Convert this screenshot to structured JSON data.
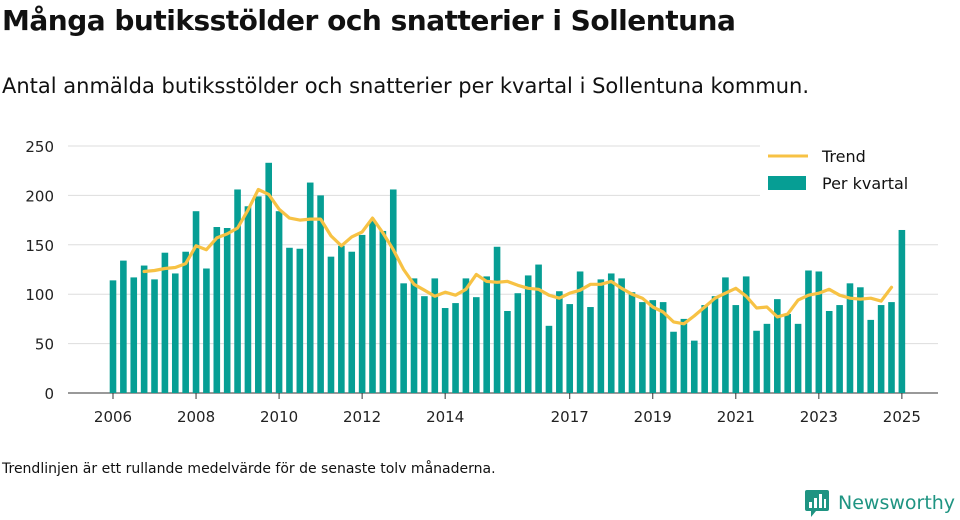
{
  "title": "Många butiksstölder och snatterier i Sollentuna",
  "subtitle": "Antal anmälda butiksstölder och snatterier per kvartal i Sollentuna kommun.",
  "footnote": "Trendlinjen är ett rullande medelvärde för de senaste tolv månaderna.",
  "brand": "Newsworthy",
  "colors": {
    "bars": "#069e94",
    "trend": "#f7c244",
    "grid": "#dddddd",
    "brand": "#1f9482"
  },
  "chart_data": {
    "type": "bar",
    "xlabel": "",
    "ylabel": "",
    "ylim": [
      0,
      250
    ],
    "yticks": [
      0,
      50,
      100,
      150,
      200,
      250
    ],
    "xtick_labels": [
      {
        "label": "2006",
        "quarter_index": 0
      },
      {
        "label": "2008",
        "quarter_index": 8
      },
      {
        "label": "2010",
        "quarter_index": 16
      },
      {
        "label": "2012",
        "quarter_index": 24
      },
      {
        "label": "2014",
        "quarter_index": 32
      },
      {
        "label": "2017",
        "quarter_index": 44
      },
      {
        "label": "2019",
        "quarter_index": 52
      },
      {
        "label": "2021",
        "quarter_index": 60
      },
      {
        "label": "2023",
        "quarter_index": 68
      },
      {
        "label": "2025",
        "quarter_index": 76
      }
    ],
    "grid": true,
    "legend_position": "top-right",
    "series": [
      {
        "name": "Per kvartal",
        "type": "bar",
        "values": [
          114,
          134,
          117,
          129,
          115,
          142,
          121,
          143,
          184,
          126,
          168,
          167,
          206,
          189,
          199,
          233,
          184,
          147,
          146,
          213,
          200,
          138,
          149,
          143,
          160,
          174,
          164,
          206,
          111,
          116,
          98,
          116,
          86,
          91,
          116,
          97,
          118,
          148,
          83,
          101,
          119,
          130,
          68,
          103,
          90,
          123,
          87,
          115,
          121,
          116,
          102,
          92,
          94,
          92,
          62,
          75,
          53,
          89,
          98,
          117,
          89,
          118,
          63,
          70,
          95,
          80,
          70,
          124,
          123,
          83,
          89,
          111,
          107,
          74,
          89,
          92,
          165
        ]
      },
      {
        "name": "Trend",
        "type": "line",
        "start_index": 3,
        "values": [
          123,
          124,
          126,
          127,
          131,
          149,
          145,
          157,
          161,
          167,
          185,
          206,
          201,
          186,
          177,
          175,
          176,
          176,
          159,
          149,
          158,
          163,
          177,
          162,
          145,
          125,
          110,
          104,
          98,
          102,
          99,
          105,
          120,
          113,
          112,
          113,
          109,
          106,
          105,
          99,
          96,
          101,
          104,
          110,
          110,
          113,
          106,
          100,
          96,
          87,
          82,
          72,
          70,
          78,
          87,
          96,
          101,
          106,
          98,
          86,
          87,
          77,
          80,
          94,
          99,
          101,
          105,
          99,
          96,
          95,
          96,
          93,
          107
        ]
      }
    ]
  }
}
